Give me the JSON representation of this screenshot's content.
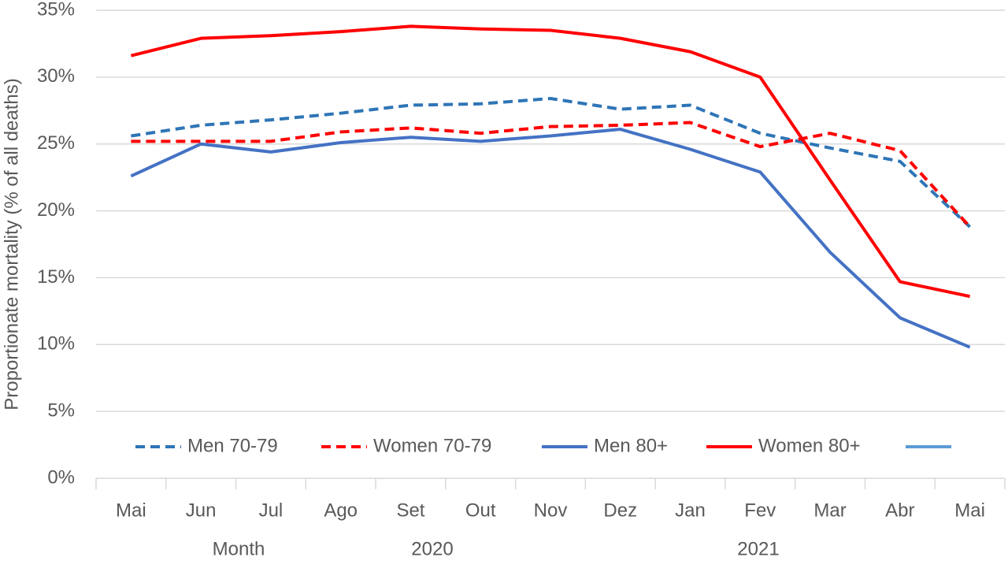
{
  "chart_data": {
    "type": "line",
    "ylabel": "Proportionate mortality (% of all deaths)",
    "xlabel": "Month",
    "year_labels": [
      "2020",
      "2021"
    ],
    "categories": [
      "Mai",
      "Jun",
      "Jul",
      "Ago",
      "Set",
      "Out",
      "Nov",
      "Dez",
      "Jan",
      "Fev",
      "Mar",
      "Abr",
      "Mai"
    ],
    "ylim": [
      0,
      35
    ],
    "yticks": [
      {
        "value": 0,
        "label": "0%"
      },
      {
        "value": 5,
        "label": "5%"
      },
      {
        "value": 10,
        "label": "10%"
      },
      {
        "value": 15,
        "label": "15%"
      },
      {
        "value": 20,
        "label": "20%"
      },
      {
        "value": 25,
        "label": "25%"
      },
      {
        "value": 30,
        "label": "30%"
      },
      {
        "value": 35,
        "label": "35%"
      }
    ],
    "grid": true,
    "series": [
      {
        "name": "Men 70-79",
        "color": "#2e75b6",
        "dashed": true,
        "values": [
          25.6,
          26.4,
          26.8,
          27.3,
          27.9,
          28.0,
          28.4,
          27.6,
          27.9,
          25.8,
          24.7,
          23.7,
          18.8
        ]
      },
      {
        "name": "Women 70-79",
        "color": "#ff0000",
        "dashed": true,
        "values": [
          25.2,
          25.2,
          25.2,
          25.9,
          26.2,
          25.8,
          26.3,
          26.4,
          26.6,
          24.8,
          25.8,
          24.5,
          18.8
        ]
      },
      {
        "name": "Men 80+",
        "color": "#4472c4",
        "dashed": false,
        "values": [
          22.6,
          25.0,
          24.4,
          25.1,
          25.5,
          25.2,
          25.6,
          26.1,
          24.6,
          22.9,
          16.9,
          12.0,
          9.8
        ]
      },
      {
        "name": "Women 80+",
        "color": "#ff0000",
        "dashed": false,
        "values": [
          31.6,
          32.9,
          33.1,
          33.4,
          33.8,
          33.6,
          33.5,
          32.9,
          31.9,
          30.0,
          22.3,
          14.7,
          13.6
        ]
      }
    ]
  }
}
